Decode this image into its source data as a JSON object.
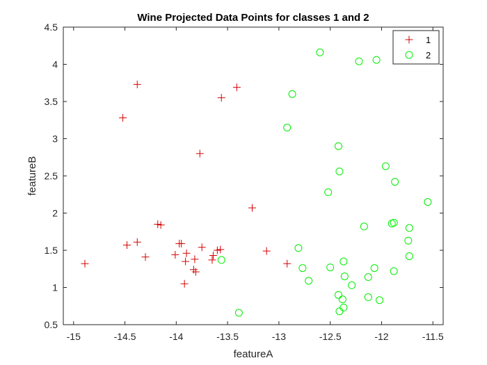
{
  "chart_data": {
    "type": "scatter",
    "title": "Wine Projected Data Points for classes 1 and 2",
    "xlabel": "featureA",
    "ylabel": "featureB",
    "xlim": [
      -15.1,
      -11.4
    ],
    "ylim": [
      0.5,
      4.5
    ],
    "xticks": [
      -15,
      -14.5,
      -14,
      -13.5,
      -13,
      -12.5,
      -12,
      -11.5
    ],
    "yticks": [
      0.5,
      1,
      1.5,
      2,
      2.5,
      3,
      3.5,
      4,
      4.5
    ],
    "grid": false,
    "legend_position": "top-right",
    "series": [
      {
        "name": "1",
        "marker": "plus",
        "color": "#d40000",
        "points": [
          [
            -14.89,
            1.32
          ],
          [
            -14.52,
            3.28
          ],
          [
            -14.38,
            3.73
          ],
          [
            -14.48,
            1.57
          ],
          [
            -14.38,
            1.61
          ],
          [
            -14.3,
            1.41
          ],
          [
            -14.18,
            1.85
          ],
          [
            -14.15,
            1.84
          ],
          [
            -14.01,
            1.44
          ],
          [
            -13.97,
            1.59
          ],
          [
            -13.95,
            1.59
          ],
          [
            -13.92,
            1.05
          ],
          [
            -13.91,
            1.35
          ],
          [
            -13.9,
            1.46
          ],
          [
            -13.83,
            1.24
          ],
          [
            -13.81,
            1.21
          ],
          [
            -13.82,
            1.38
          ],
          [
            -13.77,
            2.8
          ],
          [
            -13.75,
            1.54
          ],
          [
            -13.65,
            1.37
          ],
          [
            -13.64,
            1.43
          ],
          [
            -13.6,
            1.5
          ],
          [
            -13.57,
            1.51
          ],
          [
            -13.56,
            3.55
          ],
          [
            -13.41,
            3.69
          ],
          [
            -13.26,
            2.07
          ],
          [
            -13.12,
            1.49
          ],
          [
            -12.92,
            1.32
          ]
        ]
      },
      {
        "name": "2",
        "marker": "circle",
        "color": "#00ee00",
        "points": [
          [
            -12.6,
            4.16
          ],
          [
            -12.22,
            4.04
          ],
          [
            -12.05,
            4.06
          ],
          [
            -12.87,
            3.6
          ],
          [
            -12.92,
            3.15
          ],
          [
            -12.42,
            2.9
          ],
          [
            -12.41,
            2.56
          ],
          [
            -12.52,
            2.28
          ],
          [
            -11.96,
            2.63
          ],
          [
            -11.87,
            2.42
          ],
          [
            -11.55,
            2.15
          ],
          [
            -12.17,
            1.82
          ],
          [
            -11.9,
            1.86
          ],
          [
            -11.88,
            1.87
          ],
          [
            -11.73,
            1.8
          ],
          [
            -11.74,
            1.63
          ],
          [
            -11.73,
            1.42
          ],
          [
            -12.81,
            1.53
          ],
          [
            -13.56,
            1.37
          ],
          [
            -12.77,
            1.26
          ],
          [
            -12.71,
            1.09
          ],
          [
            -12.5,
            1.27
          ],
          [
            -12.37,
            1.35
          ],
          [
            -12.36,
            1.15
          ],
          [
            -12.29,
            1.03
          ],
          [
            -12.07,
            1.26
          ],
          [
            -12.13,
            1.14
          ],
          [
            -11.88,
            1.22
          ],
          [
            -12.42,
            0.9
          ],
          [
            -12.38,
            0.84
          ],
          [
            -12.37,
            0.73
          ],
          [
            -12.41,
            0.68
          ],
          [
            -12.13,
            0.87
          ],
          [
            -12.02,
            0.83
          ],
          [
            -13.39,
            0.66
          ]
        ]
      }
    ]
  }
}
